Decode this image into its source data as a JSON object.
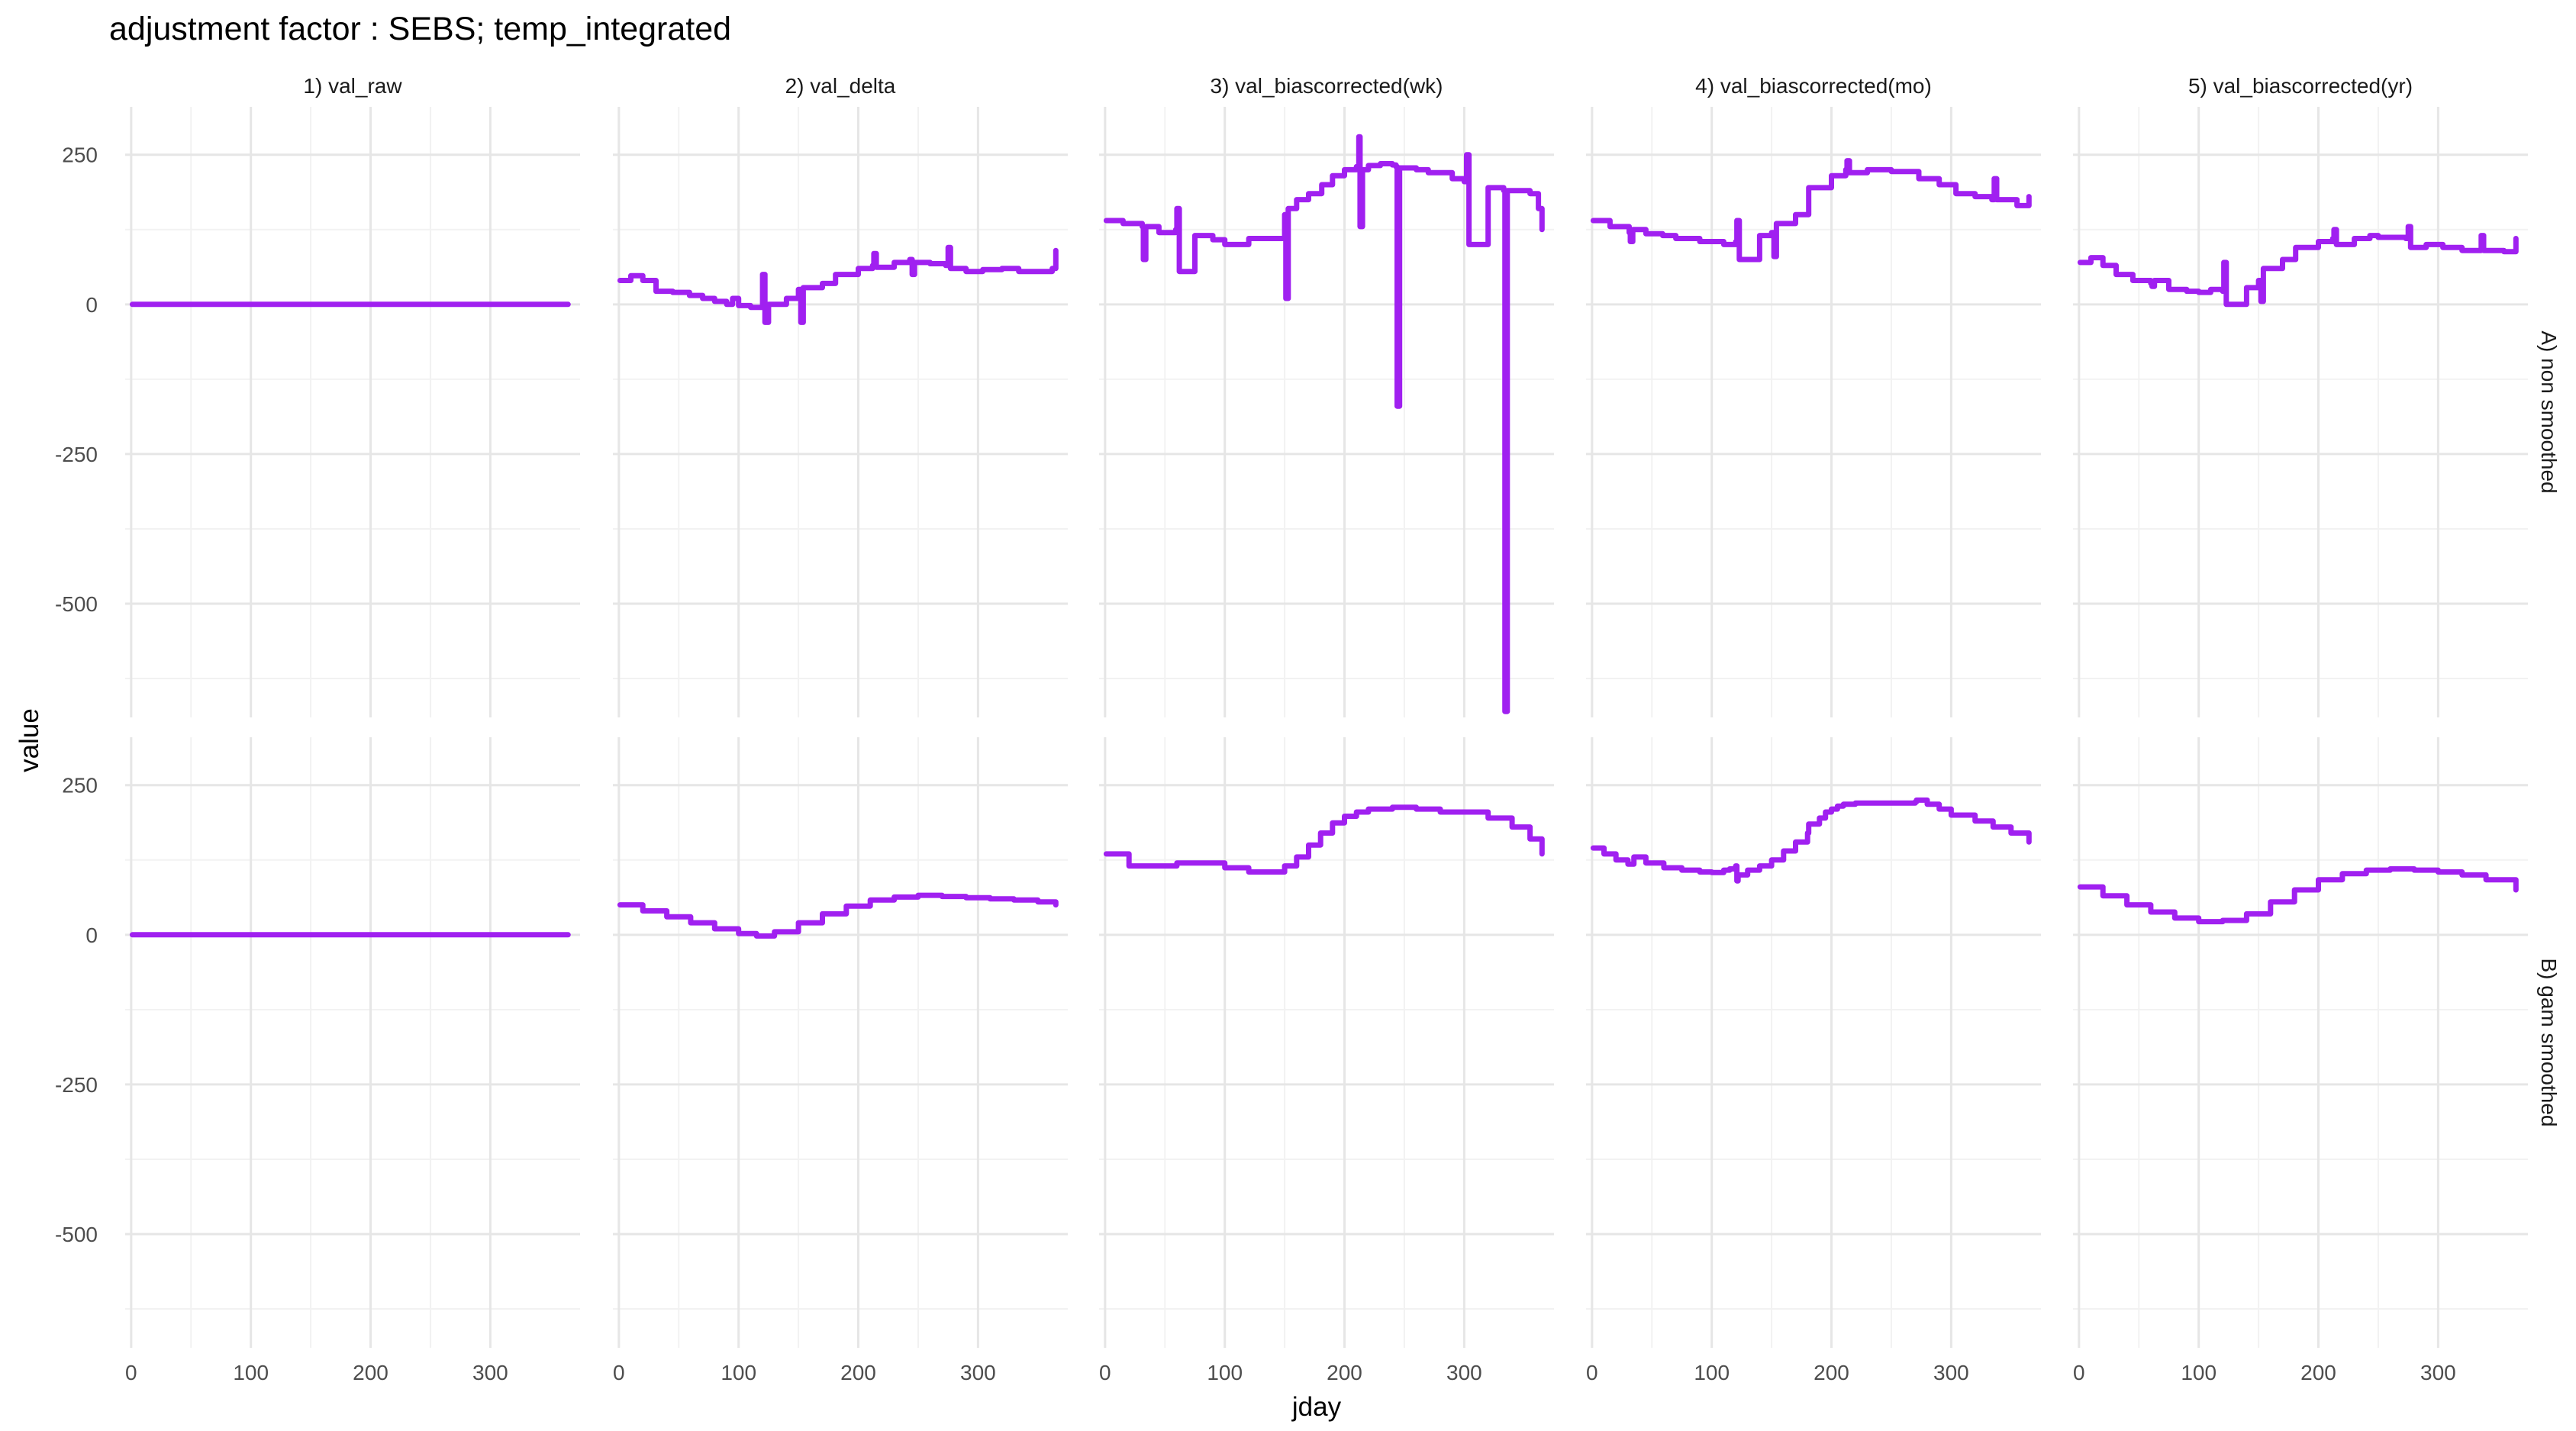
{
  "chart_data": {
    "type": "line",
    "title": "adjustment factor : SEBS; temp_integrated",
    "xlabel": "jday",
    "ylabel": "value",
    "xlim": [
      -5,
      375
    ],
    "ylim": [
      -690,
      330
    ],
    "x_ticks": [
      0,
      100,
      200,
      300
    ],
    "y_ticks": [
      250,
      0,
      -250,
      -500
    ],
    "x_tick_labels": [
      "0",
      "100",
      "200",
      "300"
    ],
    "y_tick_labels": [
      "250",
      "0",
      "-250",
      "-500"
    ],
    "grid": true,
    "line_color": "#a020f0",
    "columns": [
      "1) val_raw",
      "2) val_delta",
      "3) val_biascorrected(wk)",
      "4) val_biascorrected(mo)",
      "5) val_biascorrected(yr)"
    ],
    "rows": [
      "A) non smoothed",
      "B) gam smoothed"
    ],
    "panels": [
      [
        {
          "x": [
            1,
            30,
            60,
            90,
            120,
            150,
            180,
            210,
            240,
            270,
            300,
            330,
            365
          ],
          "y": [
            0,
            0,
            0,
            0,
            0,
            0,
            0,
            0,
            0,
            0,
            0,
            0,
            0
          ]
        },
        {
          "x": [
            1,
            10,
            20,
            31,
            45,
            59,
            70,
            80,
            90,
            95,
            100,
            110,
            118,
            120,
            122,
            125,
            140,
            150,
            152,
            154,
            170,
            181,
            200,
            212,
            213,
            215,
            230,
            243,
            245,
            247,
            260,
            273,
            275,
            277,
            290,
            304,
            320,
            334,
            350,
            362,
            365
          ],
          "y": [
            40,
            48,
            40,
            22,
            20,
            15,
            10,
            5,
            0,
            10,
            -2,
            -5,
            -5,
            50,
            -30,
            0,
            10,
            25,
            -30,
            28,
            35,
            50,
            60,
            65,
            85,
            62,
            70,
            75,
            50,
            70,
            68,
            65,
            95,
            60,
            55,
            58,
            60,
            55,
            55,
            60,
            90
          ]
        },
        {
          "x": [
            1,
            15,
            31,
            32,
            34,
            45,
            59,
            60,
            62,
            75,
            90,
            100,
            120,
            150,
            151,
            153,
            160,
            170,
            181,
            190,
            200,
            210,
            212,
            213,
            215,
            220,
            230,
            240,
            243,
            244,
            246,
            250,
            260,
            270,
            290,
            300,
            302,
            304,
            320,
            333,
            334,
            336,
            345,
            355,
            362,
            365
          ],
          "y": [
            140,
            135,
            130,
            75,
            130,
            120,
            125,
            160,
            55,
            115,
            108,
            100,
            110,
            150,
            10,
            160,
            175,
            185,
            200,
            215,
            225,
            230,
            280,
            130,
            225,
            232,
            235,
            233,
            230,
            -170,
            228,
            228,
            225,
            220,
            210,
            205,
            250,
            100,
            195,
            190,
            -680,
            190,
            190,
            185,
            160,
            125
          ]
        },
        {
          "x": [
            1,
            15,
            31,
            32,
            34,
            45,
            59,
            70,
            90,
            110,
            120,
            121,
            123,
            140,
            150,
            152,
            154,
            170,
            181,
            200,
            212,
            213,
            215,
            230,
            243,
            250,
            273,
            290,
            304,
            320,
            334,
            336,
            338,
            355,
            365
          ],
          "y": [
            140,
            130,
            120,
            105,
            125,
            118,
            115,
            110,
            105,
            100,
            105,
            140,
            75,
            115,
            120,
            80,
            135,
            150,
            195,
            215,
            225,
            240,
            220,
            225,
            225,
            222,
            210,
            200,
            185,
            180,
            175,
            210,
            175,
            165,
            180
          ]
        },
        {
          "x": [
            1,
            10,
            20,
            31,
            45,
            60,
            61,
            63,
            75,
            90,
            100,
            110,
            120,
            121,
            123,
            140,
            150,
            152,
            154,
            170,
            181,
            200,
            212,
            213,
            215,
            230,
            243,
            250,
            273,
            275,
            277,
            290,
            304,
            320,
            334,
            336,
            338,
            355,
            362,
            365
          ],
          "y": [
            70,
            78,
            65,
            50,
            40,
            35,
            30,
            40,
            25,
            22,
            20,
            25,
            22,
            70,
            0,
            28,
            40,
            5,
            60,
            75,
            95,
            105,
            110,
            125,
            100,
            110,
            115,
            112,
            110,
            130,
            95,
            100,
            95,
            90,
            90,
            115,
            90,
            88,
            88,
            110
          ]
        }
      ],
      [
        {
          "x": [
            1,
            30,
            60,
            90,
            120,
            150,
            180,
            210,
            240,
            270,
            300,
            330,
            365
          ],
          "y": [
            0,
            0,
            0,
            0,
            0,
            0,
            0,
            0,
            0,
            0,
            0,
            0,
            0
          ]
        },
        {
          "x": [
            1,
            20,
            40,
            60,
            80,
            100,
            115,
            130,
            150,
            170,
            190,
            210,
            230,
            250,
            270,
            290,
            310,
            330,
            350,
            365
          ],
          "y": [
            50,
            40,
            30,
            20,
            10,
            2,
            -2,
            5,
            20,
            35,
            48,
            58,
            63,
            66,
            64,
            62,
            60,
            58,
            55,
            50
          ]
        },
        {
          "x": [
            1,
            20,
            40,
            60,
            80,
            100,
            120,
            140,
            150,
            160,
            170,
            180,
            190,
            200,
            210,
            220,
            240,
            260,
            280,
            300,
            320,
            340,
            355,
            365
          ],
          "y": [
            135,
            115,
            115,
            120,
            120,
            112,
            105,
            105,
            115,
            130,
            150,
            170,
            187,
            198,
            205,
            210,
            213,
            210,
            205,
            205,
            195,
            180,
            160,
            135
          ]
        },
        {
          "x": [
            1,
            10,
            20,
            30,
            35,
            45,
            60,
            75,
            90,
            100,
            110,
            115,
            120,
            121,
            122,
            130,
            140,
            150,
            160,
            170,
            180,
            181,
            190,
            195,
            200,
            205,
            210,
            220,
            240,
            260,
            270,
            271,
            280,
            290,
            300,
            320,
            335,
            350,
            365
          ],
          "y": [
            145,
            135,
            125,
            118,
            130,
            120,
            112,
            108,
            105,
            104,
            108,
            110,
            115,
            90,
            100,
            108,
            115,
            125,
            140,
            155,
            170,
            185,
            195,
            205,
            210,
            215,
            218,
            220,
            220,
            220,
            222,
            225,
            218,
            210,
            200,
            190,
            180,
            170,
            155
          ]
        },
        {
          "x": [
            1,
            20,
            40,
            60,
            80,
            100,
            120,
            140,
            160,
            180,
            200,
            220,
            240,
            260,
            280,
            300,
            320,
            340,
            365
          ],
          "y": [
            80,
            65,
            50,
            38,
            28,
            22,
            24,
            35,
            55,
            75,
            92,
            102,
            108,
            110,
            108,
            105,
            100,
            92,
            75
          ]
        }
      ]
    ]
  }
}
